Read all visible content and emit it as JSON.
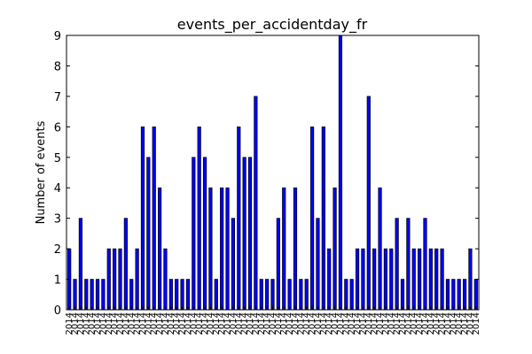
{
  "chart_data": {
    "type": "bar",
    "title": "events_per_accidentday_fr",
    "xlabel": "",
    "ylabel": "Number of events",
    "ylim": [
      0,
      9
    ],
    "yticks": [
      0,
      1,
      2,
      3,
      4,
      5,
      6,
      7,
      8,
      9
    ],
    "grid": false,
    "bar_color": "#0000ff",
    "edge_color": "#000000",
    "category_label": "2014",
    "values": [
      2,
      1,
      3,
      1,
      1,
      1,
      1,
      2,
      2,
      2,
      3,
      1,
      2,
      6,
      5,
      6,
      4,
      2,
      1,
      1,
      1,
      1,
      5,
      6,
      5,
      4,
      1,
      4,
      4,
      3,
      6,
      5,
      5,
      7,
      1,
      1,
      1,
      3,
      4,
      1,
      4,
      1,
      1,
      6,
      3,
      6,
      2,
      4,
      9,
      1,
      1,
      2,
      2,
      7,
      2,
      4,
      2,
      2,
      3,
      1,
      3,
      2,
      2,
      3,
      2,
      2,
      2,
      1,
      1,
      1,
      1,
      2,
      1
    ]
  }
}
